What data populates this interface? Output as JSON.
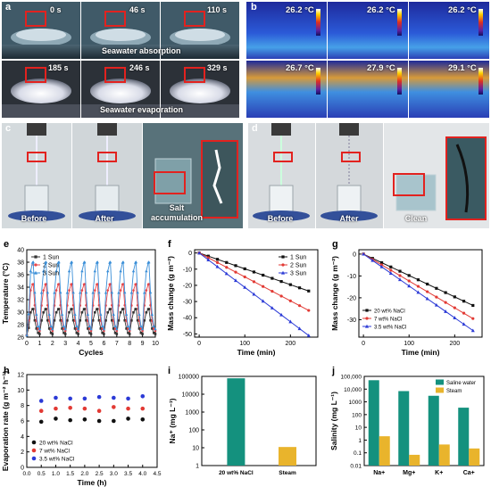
{
  "panel_a": {
    "label": "a",
    "times_top": [
      "0 s",
      "46 s",
      "110 s"
    ],
    "times_bottom": [
      "185 s",
      "246 s",
      "329 s"
    ],
    "caption_top": "Seawater absorption",
    "caption_bottom": "Seawater evaporation"
  },
  "panel_b": {
    "label": "b",
    "temps_top": [
      "26.2 °C",
      "26.2 °C",
      "26.2 °C"
    ],
    "temps_bottom": [
      "26.7 °C",
      "27.9 °C",
      "29.1 °C"
    ]
  },
  "panel_c": {
    "label": "c",
    "labels": [
      "Before",
      "After",
      "Salt accumulation"
    ]
  },
  "panel_d": {
    "label": "d",
    "labels": [
      "Before",
      "After",
      "Clean"
    ]
  },
  "panel_e": {
    "label": "e"
  },
  "panel_f": {
    "label": "f"
  },
  "panel_g": {
    "label": "g"
  },
  "panel_h": {
    "label": "h"
  },
  "panel_i": {
    "label": "i"
  },
  "panel_j": {
    "label": "j"
  },
  "chart_data": [
    {
      "id": "e",
      "type": "line",
      "xlabel": "Cycles",
      "ylabel": "Temperature (°C)",
      "xlim": [
        0,
        10
      ],
      "ylim": [
        26,
        40
      ],
      "xticks": [
        "0",
        "1",
        "2",
        "3",
        "4",
        "5",
        "6",
        "7",
        "8",
        "9",
        "10"
      ],
      "yticks": [
        "26",
        "28",
        "30",
        "32",
        "34",
        "36",
        "38",
        "40"
      ],
      "legend_position": "top-left",
      "series": [
        {
          "name": "1 Sun",
          "color": "#333333",
          "marker": "square",
          "peak": 30.5,
          "base": 26.5
        },
        {
          "name": "2 Sun",
          "color": "#e8474a",
          "marker": "circle",
          "peak": 34.5,
          "base": 27.0
        },
        {
          "name": "3 Sun",
          "color": "#3b8fd8",
          "marker": "triangle",
          "peak": 38.0,
          "base": 27.3
        }
      ]
    },
    {
      "id": "f",
      "type": "line",
      "xlabel": "Time (min)",
      "ylabel": "Mass change (g m⁻²)",
      "xlim": [
        -10,
        260
      ],
      "ylim": [
        -52,
        2
      ],
      "xticks": [
        "0",
        "100",
        "200"
      ],
      "xtick_values": [
        0,
        100,
        200
      ],
      "yticks": [
        "0",
        "-10",
        "-20",
        "-30",
        "-40",
        "-50"
      ],
      "ytick_values": [
        0,
        -10,
        -20,
        -30,
        -40,
        -50
      ],
      "legend_position": "top-right",
      "x": [
        0,
        20,
        40,
        60,
        80,
        100,
        120,
        140,
        160,
        180,
        200,
        220,
        240
      ],
      "series": [
        {
          "name": "1 Sun",
          "color": "#111111",
          "marker": "square",
          "end": -23.5
        },
        {
          "name": "2 Sun",
          "color": "#e23a34",
          "marker": "circle",
          "end": -35.5
        },
        {
          "name": "3 Sun",
          "color": "#2b3ad6",
          "marker": "triangle",
          "end": -51
        }
      ]
    },
    {
      "id": "g",
      "type": "line",
      "xlabel": "Time (min)",
      "ylabel": "Mass change (g m⁻²)",
      "xlim": [
        -10,
        260
      ],
      "ylim": [
        -38,
        2
      ],
      "xticks": [
        "0",
        "100",
        "200"
      ],
      "xtick_values": [
        0,
        100,
        200
      ],
      "yticks": [
        "0",
        "-10",
        "-20",
        "-30"
      ],
      "ytick_values": [
        0,
        -10,
        -20,
        -30
      ],
      "legend_position": "bottom-left",
      "x": [
        0,
        20,
        40,
        60,
        80,
        100,
        120,
        140,
        160,
        180,
        200,
        220,
        240
      ],
      "series": [
        {
          "name": "20 wt% NaCl",
          "color": "#111111",
          "marker": "square",
          "end": -23.5
        },
        {
          "name": "7 wt% NaCl",
          "color": "#e23a34",
          "marker": "circle",
          "end": -29.5
        },
        {
          "name": "3.5 wt% NaCl",
          "color": "#2b3ad6",
          "marker": "triangle",
          "end": -35
        }
      ]
    },
    {
      "id": "h",
      "type": "scatter",
      "xlabel": "Time (h)",
      "ylabel": "Evaporation rate (g m⁻² h⁻¹)",
      "xlim": [
        0,
        4.5
      ],
      "ylim": [
        0,
        12
      ],
      "xticks": [
        "0.0",
        "0.5",
        "1.0",
        "1.5",
        "2.0",
        "2.5",
        "3.0",
        "3.5",
        "4.0",
        "4.5"
      ],
      "xtick_values": [
        0,
        0.5,
        1,
        1.5,
        2,
        2.5,
        3,
        3.5,
        4,
        4.5
      ],
      "yticks": [
        "0",
        "2",
        "4",
        "6",
        "8",
        "10",
        "12"
      ],
      "ytick_values": [
        0,
        2,
        4,
        6,
        8,
        10,
        12
      ],
      "legend_position": "bottom-left",
      "series": [
        {
          "name": "20 wt% NaCl",
          "color": "#111111",
          "x": [
            0.5,
            1.0,
            1.5,
            2.0,
            2.5,
            3.0,
            3.5,
            4.0
          ],
          "y": [
            5.9,
            6.3,
            6.1,
            6.2,
            6.0,
            6.0,
            6.3,
            6.2
          ]
        },
        {
          "name": "7 wt% NaCl",
          "color": "#e23a34",
          "x": [
            0.5,
            1.0,
            1.5,
            2.0,
            2.5,
            3.0,
            3.5,
            4.0
          ],
          "y": [
            7.3,
            7.6,
            7.7,
            7.6,
            7.3,
            7.8,
            7.6,
            7.6
          ]
        },
        {
          "name": "3.5 wt% NaCl",
          "color": "#2b3ad6",
          "x": [
            0.5,
            1.0,
            1.5,
            2.0,
            2.5,
            3.0,
            3.5,
            4.0
          ],
          "y": [
            8.6,
            9.0,
            8.9,
            8.9,
            9.1,
            9.0,
            8.9,
            9.2
          ]
        }
      ]
    },
    {
      "id": "i",
      "type": "bar",
      "scale": "log",
      "ylabel": "Na⁺ (mg L⁻¹)",
      "categories": [
        "20 wt% NaCl",
        "Steam"
      ],
      "values": [
        78000,
        11
      ],
      "colors": [
        "#14917e",
        "#e9b42c"
      ],
      "ylim": [
        1,
        100000
      ],
      "yticks": [
        "1",
        "10",
        "100",
        "1000",
        "10000",
        "100000"
      ],
      "ytick_values": [
        1,
        10,
        100,
        1000,
        10000,
        100000
      ]
    },
    {
      "id": "j",
      "type": "bar",
      "scale": "log",
      "ylabel": "Salinity (mg L⁻¹)",
      "categories": [
        "Na+",
        "Mg+",
        "K+",
        "Ca+"
      ],
      "ylim": [
        0.01,
        100000
      ],
      "yticks": [
        "0.01",
        "0.1",
        "1",
        "10",
        "100",
        "1000",
        "10,000",
        "100,000"
      ],
      "ytick_values": [
        0.01,
        0.1,
        1,
        10,
        100,
        1000,
        10000,
        100000
      ],
      "legend_position": "top-right",
      "series": [
        {
          "name": "Saline water",
          "color": "#14917e",
          "values": [
            50000,
            7000,
            3000,
            350
          ]
        },
        {
          "name": "Steam",
          "color": "#e9b42c",
          "values": [
            2,
            0.07,
            0.45,
            0.22
          ]
        }
      ]
    }
  ]
}
